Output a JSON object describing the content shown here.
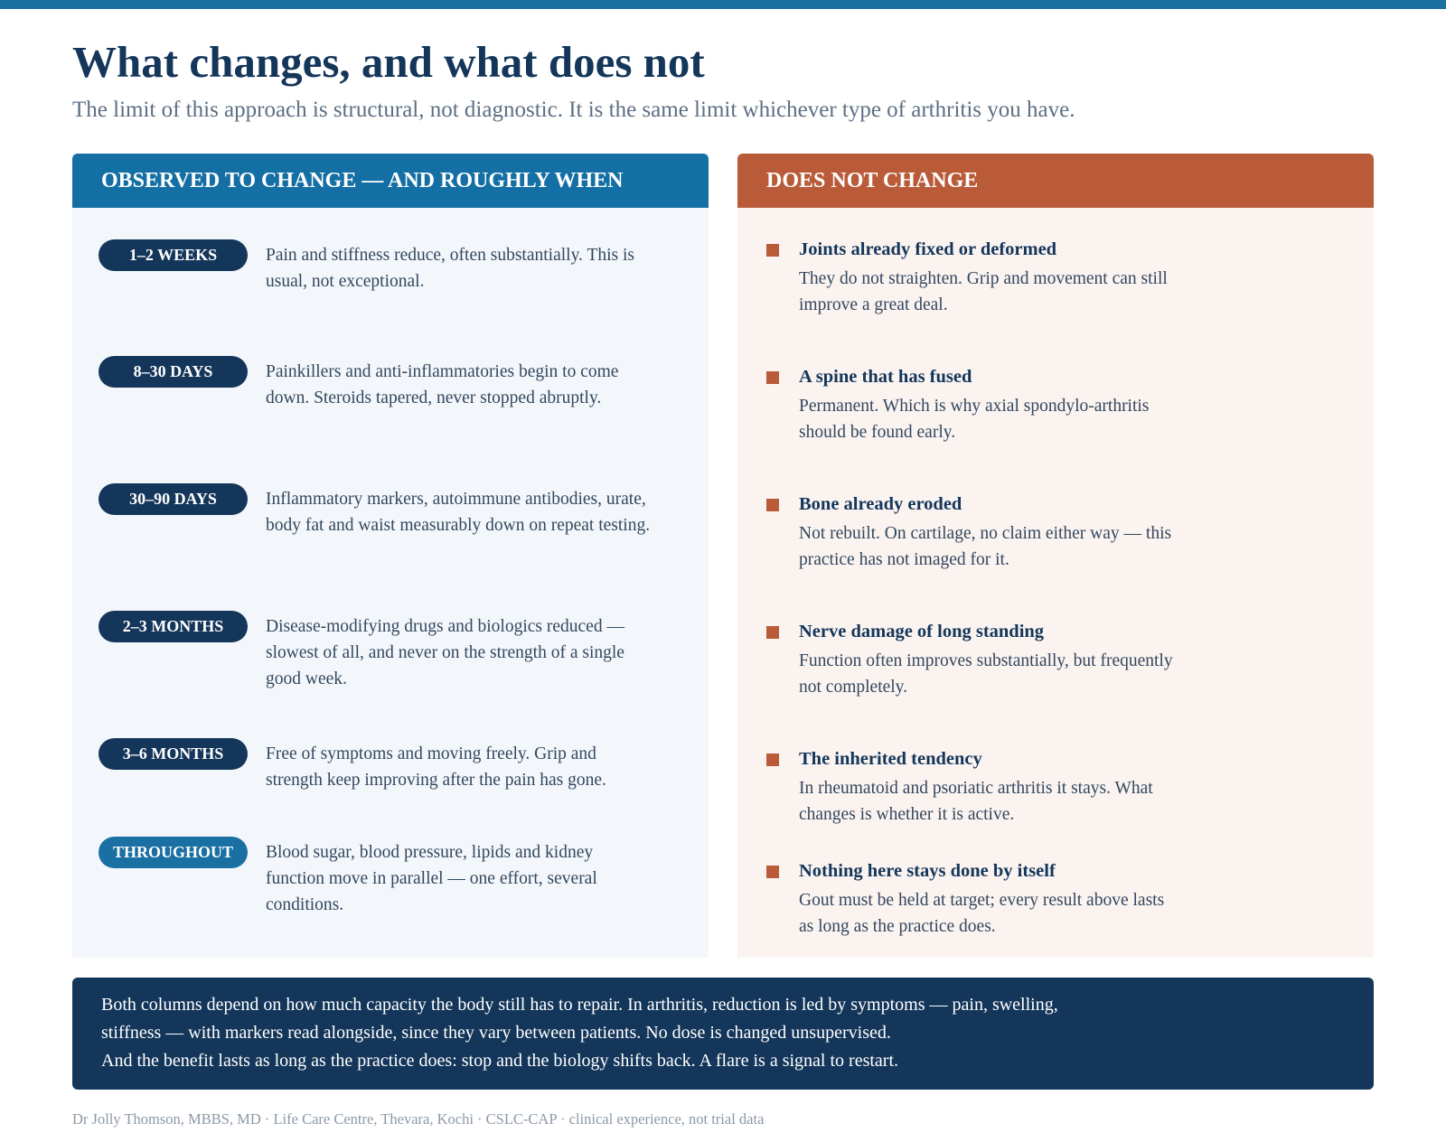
{
  "header": {
    "title": "What changes, and what does not",
    "subtitle": "The limit of this approach is structural, not diagnostic. It is the same limit whichever type of arthritis you have."
  },
  "left": {
    "heading": "OBSERVED TO CHANGE — AND ROUGHLY WHEN",
    "items": [
      {
        "tag": "1–2 WEEKS",
        "text": "Pain and stiffness reduce, often substantially. This is usual, not exceptional."
      },
      {
        "tag": "8–30 DAYS",
        "text": "Painkillers and anti-inflammatories begin to come down. Steroids tapered, never stopped abruptly."
      },
      {
        "tag": "30–90 DAYS",
        "text": "Inflammatory markers, autoimmune antibodies, urate, body fat and waist measurably down on repeat testing."
      },
      {
        "tag": "2–3 MONTHS",
        "text": "Disease-modifying drugs and biologics reduced — slowest of all, and never on the strength of a single good week."
      },
      {
        "tag": "3–6 MONTHS",
        "text": "Free of symptoms and moving freely. Grip and strength keep improving after the pain has gone."
      },
      {
        "tag": "THROUGHOUT",
        "text": "Blood sugar, blood pressure, lipids and kidney function move in parallel — one effort, several conditions."
      }
    ]
  },
  "right": {
    "heading": "DOES NOT CHANGE",
    "items": [
      {
        "title": "Joints already fixed or deformed",
        "text": "They do not straighten. Grip and movement can still improve a great deal."
      },
      {
        "title": "A spine that has fused",
        "text": "Permanent. Which is why axial spondylo-arthritis should be found early."
      },
      {
        "title": "Bone already eroded",
        "text": "Not rebuilt. On cartilage, no claim either way — this practice has not imaged for it."
      },
      {
        "title": "Nerve damage of long standing",
        "text": "Function often improves substantially, but frequently not completely."
      },
      {
        "title": "The inherited tendency",
        "text": "In rheumatoid and psoriatic arthritis it stays. What changes is whether it is active."
      },
      {
        "title": "Nothing here stays done by itself",
        "text": "Gout must be held at target; every result above lasts as long as the practice does."
      }
    ]
  },
  "note": {
    "lines": [
      "Both columns depend on how much capacity the body still has to repair. In arthritis, reduction is led by symptoms — pain, swelling, stiffness — with markers read alongside, since they vary between patients. No dose is changed unsupervised.",
      "And the benefit lasts as long as the practice does: stop and the biology shifts back. A flare is a signal to restart."
    ]
  },
  "footer": "Dr Jolly Thomson, MBBS, MD · Life Care Centre, Thevara, Kochi · CSLC-CAP · clinical experience, not trial data"
}
